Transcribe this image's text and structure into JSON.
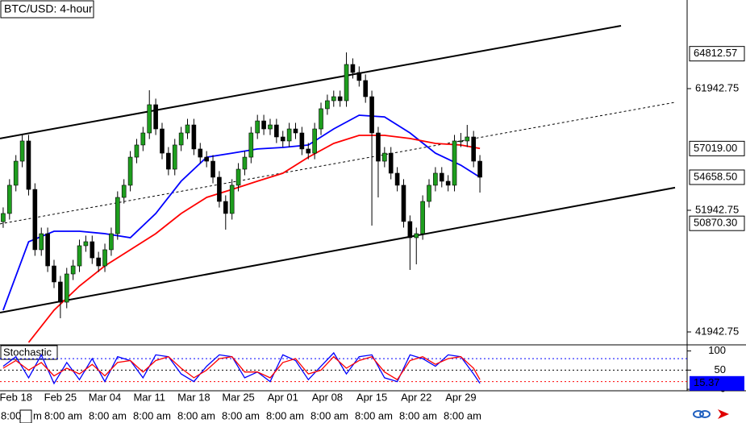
{
  "chart_data": {
    "type": "candlestick",
    "title": "BTC/USD: 4-hour",
    "categories": [
      null,
      null,
      "Feb 18",
      null,
      null,
      null,
      null,
      null,
      null,
      "Feb 25",
      null,
      null,
      null,
      null,
      null,
      null,
      "Mar 04",
      null,
      null,
      null,
      null,
      null,
      null,
      "Mar 11",
      null,
      null,
      null,
      null,
      null,
      null,
      "Mar 18",
      null,
      null,
      null,
      null,
      null,
      null,
      "Mar 25",
      null,
      null,
      null,
      null,
      null,
      null,
      "Apr 01",
      null,
      null,
      null,
      null,
      null,
      null,
      "Apr 08",
      null,
      null,
      null,
      null,
      null,
      null,
      "Apr 15",
      null,
      null,
      null,
      null,
      null,
      null,
      "Apr 22",
      null,
      null,
      null,
      null,
      null,
      null,
      "Apr 29",
      null,
      null,
      null
    ],
    "open": [
      51000,
      51680,
      54000,
      55980,
      57640,
      53660,
      48700,
      50020,
      47370,
      46050,
      44390,
      46710,
      47370,
      49030,
      49360,
      48030,
      47370,
      48700,
      50020,
      53000,
      54000,
      56310,
      57310,
      58300,
      60620,
      58630,
      56640,
      55320,
      57310,
      58300,
      58960,
      56980,
      56310,
      55980,
      54660,
      52670,
      51680,
      54000,
      55320,
      56310,
      58300,
      59290,
      58630,
      58960,
      57970,
      57640,
      58630,
      58300,
      56980,
      56640,
      58630,
      60290,
      60950,
      61280,
      60950,
      63930,
      63270,
      62610,
      61280,
      58300,
      55980,
      56640,
      54990,
      54000,
      51020,
      49690,
      50020,
      52670,
      54000,
      54990,
      54330,
      54000,
      57640,
      57640,
      57970,
      55980
    ],
    "high": [
      52180,
      54500,
      56480,
      58140,
      58140,
      54160,
      50520,
      50520,
      47870,
      46550,
      47210,
      47870,
      49530,
      49860,
      49860,
      48530,
      49200,
      50520,
      53500,
      54500,
      56810,
      57810,
      58800,
      61810,
      61120,
      59130,
      57140,
      57810,
      58800,
      59460,
      59460,
      57480,
      56810,
      56480,
      55160,
      53170,
      54500,
      55820,
      56810,
      58800,
      59790,
      59790,
      59460,
      59460,
      58470,
      59130,
      59130,
      58800,
      57480,
      59130,
      60790,
      61450,
      61780,
      61780,
      64920,
      64430,
      63770,
      63110,
      61780,
      58800,
      57140,
      57140,
      55490,
      54500,
      51520,
      50520,
      53170,
      54500,
      55490,
      55490,
      54830,
      58140,
      58300,
      58960,
      58470,
      56480
    ],
    "low": [
      50500,
      51180,
      53500,
      55480,
      53160,
      48200,
      48200,
      46870,
      45550,
      43070,
      43890,
      46210,
      46870,
      48530,
      47530,
      46870,
      46870,
      48200,
      49520,
      52500,
      53500,
      55810,
      56810,
      57800,
      58130,
      56140,
      54820,
      54820,
      56810,
      57800,
      56480,
      55810,
      55480,
      54160,
      52170,
      50350,
      51180,
      53500,
      54820,
      55810,
      57800,
      58130,
      58130,
      57470,
      57140,
      57140,
      57800,
      56480,
      56140,
      56140,
      58130,
      59790,
      60450,
      60450,
      60450,
      62770,
      62110,
      60780,
      50680,
      53000,
      55480,
      54490,
      53500,
      50520,
      47040,
      47500,
      49520,
      52170,
      53500,
      53830,
      53500,
      53500,
      57140,
      57140,
      55480,
      53400
    ],
    "close": [
      51680,
      54000,
      55980,
      57640,
      53660,
      48700,
      50020,
      47370,
      46050,
      44390,
      46710,
      47370,
      49030,
      49360,
      48030,
      47370,
      48700,
      50020,
      53000,
      54000,
      56310,
      57310,
      58300,
      60620,
      58630,
      56640,
      55320,
      57310,
      58300,
      58960,
      56980,
      56310,
      55980,
      54660,
      52670,
      51680,
      54000,
      55320,
      56310,
      58300,
      59290,
      58630,
      58960,
      57970,
      57640,
      58630,
      58300,
      56980,
      56640,
      58630,
      60290,
      60950,
      61280,
      60950,
      63930,
      63270,
      62610,
      61280,
      58300,
      55980,
      56640,
      54990,
      54000,
      51020,
      49690,
      50020,
      52670,
      54000,
      54990,
      54330,
      54000,
      57640,
      57640,
      57970,
      55980,
      54660
    ],
    "up_color": "#1e9e1e",
    "down_color": "#000000",
    "xlim": [
      -0.5,
      107.6
    ],
    "ylim": [
      40882,
      69228
    ],
    "yticks": [
      41942.75,
      51942.75,
      61942.75
    ],
    "lines": [
      {
        "color": "#000000",
        "style": "heavy",
        "x": [
          -0.5,
          97.2
        ],
        "values": [
          57840,
          67110
        ]
      },
      {
        "color": "#000000",
        "style": "dashed",
        "x": [
          -0.5,
          105.7
        ],
        "values": [
          50820,
          60820
        ]
      },
      {
        "color": "#000000",
        "style": "heavy",
        "x": [
          -0.5,
          105.7
        ],
        "values": [
          43530,
          53800
        ]
      },
      {
        "color": "#0000ff",
        "style": "solid",
        "x": [
          0,
          4,
          8,
          12,
          16,
          20,
          24,
          28,
          32,
          36,
          40,
          44,
          48,
          52,
          56,
          60,
          64,
          68,
          72,
          75
        ],
        "values": [
          43730,
          49360,
          50220,
          50220,
          50020,
          49690,
          51680,
          54330,
          56310,
          56640,
          56980,
          57110,
          57310,
          58630,
          59760,
          59620,
          58300,
          56640,
          55650,
          54660
        ]
      },
      {
        "color": "#ff0000",
        "style": "solid",
        "x": [
          0,
          4,
          8,
          12,
          16,
          20,
          24,
          28,
          32,
          36,
          40,
          44,
          48,
          52,
          56,
          60,
          64,
          68,
          72,
          75
        ],
        "values": [
          null,
          41080,
          43730,
          45720,
          47370,
          48700,
          50020,
          51680,
          53000,
          53660,
          54330,
          54990,
          56310,
          57440,
          58100,
          58100,
          57840,
          57440,
          57310,
          57019
        ]
      }
    ],
    "price_labels": [
      {
        "value": 64812.57,
        "label": "64812.57",
        "color": "#000000"
      },
      {
        "value": 57019,
        "label": "57019.00",
        "color": "#ff0000"
      },
      {
        "value": 54658.5,
        "label": "54658.50",
        "color": "#000000"
      },
      {
        "value": 50870.3,
        "label": "50870.30",
        "color": "#000000"
      }
    ],
    "time_labels": [
      "8:00",
      "m",
      "8:00 am",
      "8:00 am",
      "8:00 am",
      "8:00 am",
      "8:00 am",
      "8:00 am",
      "8:00 am",
      "8:00 am",
      "8:00 am",
      "8:00 am"
    ],
    "indicator": {
      "title": "Stochastic",
      "ylim": [
        -4,
        116
      ],
      "yticks": [
        0,
        50,
        100
      ],
      "levels": [
        {
          "value": 80,
          "color": "#0000ff"
        },
        {
          "value": 50,
          "color": "#000000"
        },
        {
          "value": 20,
          "color": "#ff0000"
        }
      ],
      "x": [
        0,
        2,
        4,
        6,
        8,
        10,
        12,
        14,
        16,
        18,
        20,
        22,
        24,
        26,
        28,
        30,
        32,
        34,
        36,
        38,
        40,
        42,
        44,
        46,
        48,
        50,
        52,
        54,
        56,
        58,
        60,
        62,
        64,
        66,
        68,
        70,
        72,
        74,
        75
      ],
      "series": [
        {
          "color": "#0000ff",
          "values": [
            60,
            85,
            30,
            90,
            15,
            70,
            25,
            80,
            20,
            85,
            75,
            30,
            90,
            85,
            40,
            20,
            60,
            90,
            85,
            30,
            45,
            20,
            90,
            75,
            25,
            60,
            95,
            40,
            85,
            90,
            30,
            20,
            90,
            80,
            60,
            90,
            85,
            40,
            15.37
          ]
        },
        {
          "color": "#ff0000",
          "values": [
            55,
            75,
            50,
            70,
            35,
            55,
            40,
            65,
            35,
            70,
            75,
            45,
            75,
            85,
            55,
            30,
            50,
            80,
            85,
            45,
            45,
            30,
            70,
            80,
            40,
            50,
            85,
            55,
            75,
            85,
            45,
            25,
            75,
            85,
            65,
            80,
            85,
            55,
            25
          ]
        }
      ]
    }
  }
}
